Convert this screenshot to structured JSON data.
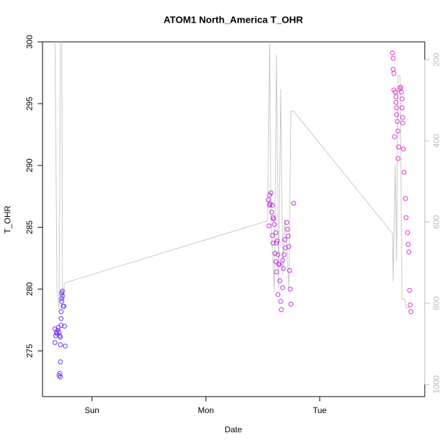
{
  "chart_data": {
    "type": "scatter",
    "title": "ATOM1 North_America T_OHR",
    "xlabel": "Date",
    "ylabel": "T_OHR",
    "xlim": [
      -0.434,
      2.922
    ],
    "xticks": [
      {
        "value": 0,
        "label": "Sun"
      },
      {
        "value": 1,
        "label": "Mon"
      },
      {
        "value": 2,
        "label": "Tue"
      }
    ],
    "ylim": [
      271.3,
      300
    ],
    "yticks": [
      275,
      280,
      285,
      290,
      295,
      300
    ],
    "y2lim": [
      1030,
      156
    ],
    "y2ticks": [
      200,
      400,
      600,
      800,
      1000
    ],
    "series": [
      {
        "type": "scatter",
        "color": "#6b2cf2",
        "x": [
          -0.325,
          -0.319,
          -0.313,
          -0.325,
          -0.307,
          -0.301,
          -0.289,
          -0.295,
          -0.283,
          -0.271,
          -0.277,
          -0.283,
          -0.277,
          -0.289,
          -0.277,
          -0.271,
          -0.271,
          -0.265,
          -0.259,
          -0.265,
          -0.259,
          -0.253,
          -0.247,
          -0.265,
          -0.235,
          -0.241,
          -0.277
        ],
        "values": [
          276.78,
          276.22,
          276.5,
          275.67,
          276.39,
          276.67,
          276.5,
          276.89,
          276.22,
          277.06,
          276.11,
          273.17,
          272.89,
          273,
          274.11,
          277.61,
          278.17,
          279,
          279.44,
          279.67,
          279.83,
          278.61,
          278.61,
          279.22,
          275.39,
          277,
          275.5
        ]
      },
      {
        "type": "scatter",
        "color": "#c02ce0",
        "x": [
          1.548,
          1.56,
          1.572,
          1.566,
          1.578,
          1.59,
          1.596,
          1.584,
          1.602,
          1.614,
          1.62,
          1.627,
          1.608,
          1.614,
          1.633,
          1.645,
          1.651,
          1.657,
          1.663,
          1.675,
          1.681,
          1.687,
          1.693,
          1.699,
          1.711,
          1.717,
          1.723,
          1.729,
          1.735,
          1.741,
          1.747,
          1.771,
          1.554,
          1.56,
          1.62,
          1.633,
          1.584,
          1.59,
          1.639,
          1.675
        ],
        "values": [
          287.22,
          287.61,
          287.78,
          286.89,
          286.22,
          285.78,
          285.67,
          286.78,
          285.22,
          284.56,
          283.72,
          283.89,
          282.89,
          282.22,
          282.78,
          282,
          280.67,
          279,
          278.33,
          282.33,
          281.67,
          282.78,
          284,
          283.33,
          285.39,
          284.83,
          284.28,
          283.44,
          281.5,
          280,
          278.78,
          286.94,
          285.11,
          286.78,
          281.39,
          279.56,
          284.33,
          283.72,
          282,
          280.11
        ]
      },
      {
        "type": "scatter",
        "color": "#e62bcc",
        "x": [
          2.639,
          2.645,
          2.645,
          2.651,
          2.651,
          2.663,
          2.669,
          2.669,
          2.675,
          2.675,
          2.681,
          2.687,
          2.693,
          2.687,
          2.657,
          2.711,
          2.717,
          2.723,
          2.723,
          2.729,
          2.729,
          2.735,
          2.741,
          2.753,
          2.759,
          2.771,
          2.777,
          2.783,
          2.789,
          2.795,
          2.801,
          2.705
        ],
        "values": [
          299.11,
          298.67,
          297.78,
          297.44,
          296.11,
          295.94,
          295.56,
          295.11,
          294.67,
          294.11,
          293.56,
          292.78,
          291.5,
          290.56,
          292.33,
          296.33,
          295.94,
          295.39,
          294.67,
          293.89,
          293.44,
          291.33,
          289.44,
          287.33,
          285.78,
          284.56,
          283.61,
          283,
          279.89,
          278.72,
          278.17,
          296.22
        ]
      },
      {
        "type": "line",
        "axis": "y2",
        "color": "#c8c8c8",
        "x": [
          -0.325,
          -0.307,
          -0.289,
          -0.277,
          -0.265,
          -0.259,
          -0.241,
          1.542,
          1.56,
          1.572,
          1.602,
          1.62,
          1.639,
          1.657,
          1.675,
          1.693,
          1.711,
          1.729,
          1.747,
          1.771,
          2.639,
          2.645,
          2.663,
          2.675,
          2.687,
          2.705,
          2.723,
          2.747,
          2.759,
          2.789
        ],
        "values": [
          130,
          763,
          814,
          150,
          150,
          797,
          750,
          597,
          140,
          594,
          772,
          188,
          763,
          273,
          730,
          594,
          662,
          763,
          327,
          327,
          628,
          747,
          459,
          696,
          239,
          239,
          790,
          790,
          811,
          811
        ]
      }
    ]
  }
}
